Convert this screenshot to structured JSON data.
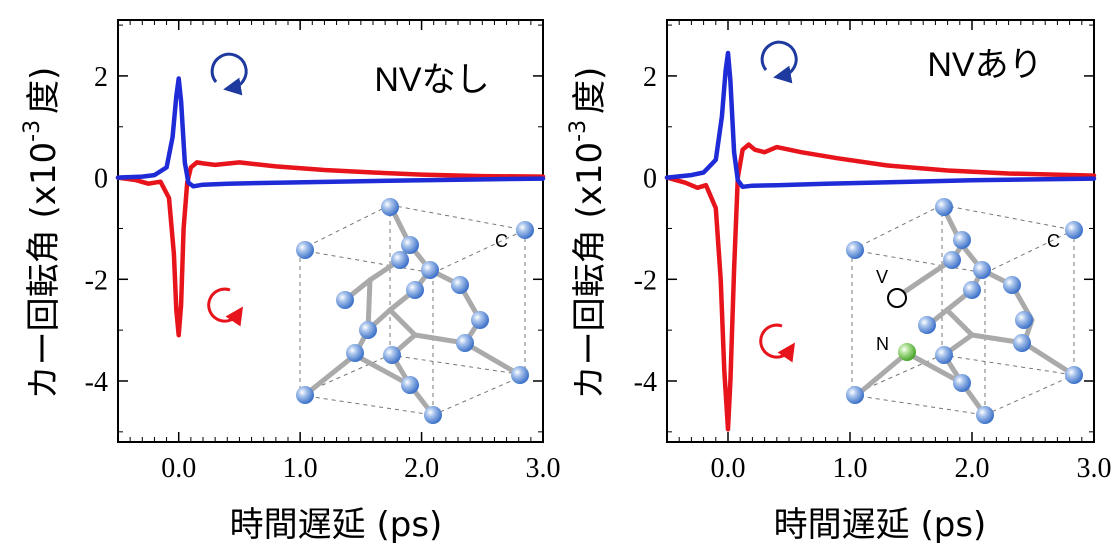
{
  "chart_data": [
    {
      "type": "line",
      "panel_label": "NVなし",
      "xlabel": "時間遅延 (ps)",
      "ylabel": "カー回転角 (x10",
      "ylabel_exp": "-3",
      "ylabel_unit": "度)",
      "xlim": [
        -0.5,
        3.0
      ],
      "ylim": [
        -5.2,
        3.1
      ],
      "x_ticks": [
        0.0,
        1.0,
        2.0,
        3.0
      ],
      "x_tick_labels": [
        "0.0",
        "1.0",
        "2.0",
        "3.0"
      ],
      "y_ticks": [
        2,
        0,
        -2,
        -4
      ],
      "y_tick_labels": [
        "2",
        "0",
        "-2",
        "-4"
      ],
      "grid": false,
      "series": [
        {
          "color": "#e8141c",
          "x": [
            -0.5,
            -0.35,
            -0.25,
            -0.15,
            -0.08,
            -0.04,
            -0.02,
            0.0,
            0.02,
            0.04,
            0.07,
            0.1,
            0.15,
            0.2,
            0.3,
            0.5,
            0.8,
            1.2,
            1.6,
            2.0,
            2.5,
            3.0
          ],
          "y": [
            0.0,
            -0.05,
            -0.12,
            -0.08,
            -0.4,
            -1.5,
            -2.6,
            -3.1,
            -2.5,
            -1.0,
            -0.1,
            0.2,
            0.3,
            0.28,
            0.25,
            0.3,
            0.22,
            0.15,
            0.1,
            0.06,
            0.03,
            0.02
          ]
        },
        {
          "color": "#1f2bd6",
          "x": [
            -0.5,
            -0.3,
            -0.2,
            -0.1,
            -0.05,
            -0.02,
            0.0,
            0.02,
            0.05,
            0.08,
            0.12,
            0.2,
            0.4,
            0.8,
            1.5,
            2.0,
            3.0
          ],
          "y": [
            0.0,
            0.02,
            0.05,
            0.2,
            0.8,
            1.6,
            1.95,
            1.5,
            0.3,
            -0.1,
            -0.17,
            -0.14,
            -0.12,
            -0.1,
            -0.07,
            -0.05,
            -0.02
          ]
        }
      ],
      "annotations": [
        "C"
      ]
    },
    {
      "type": "line",
      "panel_label": "NVあり",
      "xlabel": "時間遅延 (ps)",
      "ylabel": "カー回転角 (x10",
      "ylabel_exp": "-3",
      "ylabel_unit": "度)",
      "xlim": [
        -0.5,
        3.0
      ],
      "ylim": [
        -5.2,
        3.1
      ],
      "x_ticks": [
        0.0,
        1.0,
        2.0,
        3.0
      ],
      "x_tick_labels": [
        "0.0",
        "1.0",
        "2.0",
        "3.0"
      ],
      "y_ticks": [
        2,
        0,
        -2,
        -4
      ],
      "y_tick_labels": [
        "2",
        "0",
        "-2",
        "-4"
      ],
      "grid": false,
      "series": [
        {
          "color": "#e8141c",
          "x": [
            -0.5,
            -0.35,
            -0.25,
            -0.18,
            -0.1,
            -0.06,
            -0.03,
            0.0,
            0.02,
            0.05,
            0.08,
            0.12,
            0.17,
            0.22,
            0.3,
            0.4,
            0.6,
            0.9,
            1.3,
            1.8,
            2.3,
            3.0
          ],
          "y": [
            0.0,
            -0.1,
            -0.2,
            -0.15,
            -0.6,
            -2.0,
            -3.8,
            -4.95,
            -4.0,
            -1.8,
            0.0,
            0.55,
            0.65,
            0.55,
            0.5,
            0.6,
            0.5,
            0.38,
            0.24,
            0.14,
            0.08,
            0.04
          ]
        },
        {
          "color": "#1f2bd6",
          "x": [
            -0.5,
            -0.3,
            -0.2,
            -0.1,
            -0.05,
            -0.02,
            0.0,
            0.02,
            0.05,
            0.08,
            0.12,
            0.2,
            0.4,
            0.8,
            1.5,
            2.0,
            3.0
          ],
          "y": [
            0.0,
            0.05,
            0.1,
            0.35,
            1.2,
            2.1,
            2.45,
            1.9,
            0.5,
            -0.05,
            -0.18,
            -0.16,
            -0.15,
            -0.12,
            -0.08,
            -0.05,
            -0.02
          ]
        }
      ],
      "annotations": [
        "C",
        "V",
        "N"
      ]
    }
  ]
}
